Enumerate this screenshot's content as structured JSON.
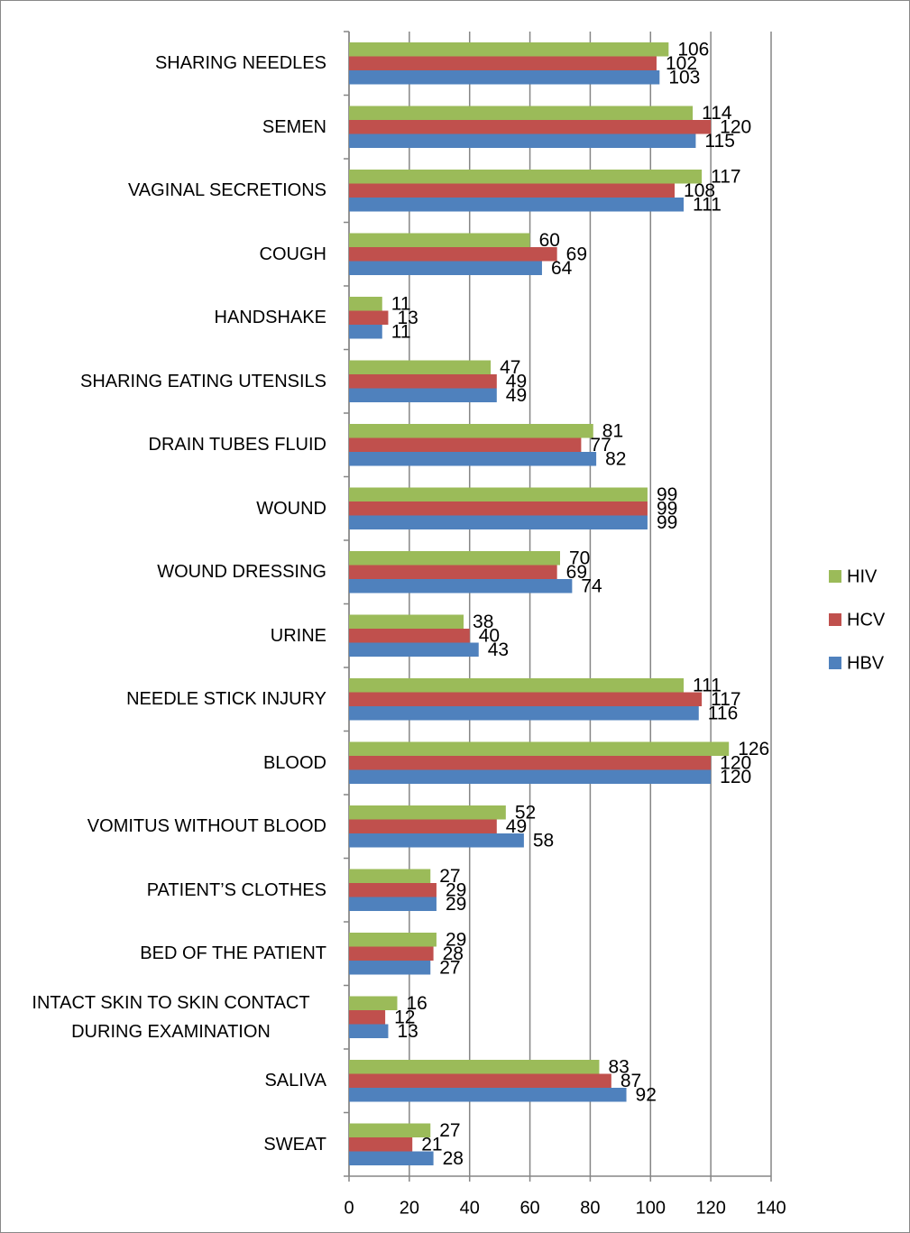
{
  "chart_data": {
    "type": "bar",
    "orientation": "horizontal",
    "categories": [
      "SHARING NEEDLES",
      "SEMEN",
      "VAGINAL SECRETIONS",
      "COUGH",
      "HANDSHAKE",
      "SHARING EATING UTENSILS",
      "DRAIN TUBES FLUID",
      "WOUND",
      "WOUND DRESSING",
      "URINE",
      "NEEDLE STICK INJURY",
      "BLOOD",
      "VOMITUS WITHOUT BLOOD",
      "PATIENT’S CLOTHES",
      "BED OF THE PATIENT",
      "INTACT SKIN TO SKIN CONTACT DURING EXAMINATION",
      "SALIVA",
      "SWEAT"
    ],
    "series": [
      {
        "name": "HIV",
        "color": "#9bbb59",
        "values": [
          106,
          114,
          117,
          60,
          11,
          47,
          81,
          99,
          70,
          38,
          111,
          126,
          52,
          27,
          29,
          16,
          83,
          27
        ]
      },
      {
        "name": "HCV",
        "color": "#c0504d",
        "values": [
          102,
          120,
          108,
          69,
          13,
          49,
          77,
          99,
          69,
          40,
          117,
          120,
          49,
          29,
          28,
          12,
          87,
          21
        ]
      },
      {
        "name": "HBV",
        "color": "#4f81bd",
        "values": [
          103,
          115,
          111,
          64,
          11,
          49,
          82,
          99,
          74,
          43,
          116,
          120,
          58,
          29,
          27,
          13,
          92,
          28
        ]
      }
    ],
    "xlim": [
      0,
      140
    ],
    "xticks": [
      0,
      20,
      40,
      60,
      80,
      100,
      120,
      140
    ],
    "grid": true,
    "legend": "right"
  }
}
